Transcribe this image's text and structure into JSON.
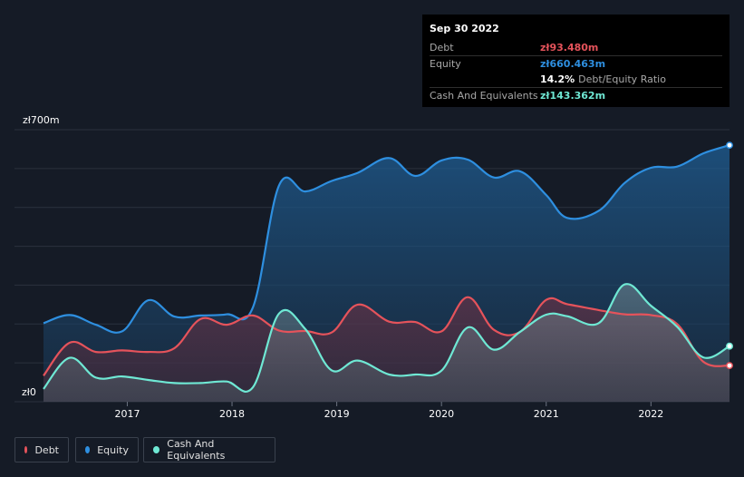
{
  "colors": {
    "background": "#151b26",
    "debt": "#e5535b",
    "equity": "#2e8fe0",
    "cash": "#6fe8d4",
    "grid": "#2b323e",
    "axis_text": "#ffffff"
  },
  "tooltip": {
    "date": "Sep 30 2022",
    "rows": [
      {
        "label": "Debt",
        "value": "zł93.480m"
      },
      {
        "label": "Equity",
        "value": "zł660.463m"
      },
      {
        "label": "",
        "value": "14.2%",
        "suffix": "Debt/Equity Ratio"
      },
      {
        "label": "Cash And Equivalents",
        "value": "zł143.362m"
      }
    ]
  },
  "legend": {
    "debt": "Debt",
    "equity": "Equity",
    "cash": "Cash And Equivalents"
  },
  "chart_data": {
    "type": "area",
    "title": "",
    "xlabel": "",
    "ylabel": "",
    "ylim": [
      0,
      700
    ],
    "y_tick_labels": [
      "zł0",
      "zł700m"
    ],
    "x_range": [
      2016.2,
      2022.75
    ],
    "x_ticks": [
      2017,
      2018,
      2019,
      2020,
      2021,
      2022
    ],
    "series": [
      {
        "name": "Equity",
        "x": [
          2016.2,
          2016.45,
          2016.7,
          2016.95,
          2017.2,
          2017.45,
          2017.7,
          2017.95,
          2018.2,
          2018.45,
          2018.7,
          2018.95,
          2019.2,
          2019.5,
          2019.75,
          2020.0,
          2020.25,
          2020.5,
          2020.75,
          2021.0,
          2021.2,
          2021.5,
          2021.75,
          2022.0,
          2022.25,
          2022.5,
          2022.75
        ],
        "values": [
          202,
          223,
          198,
          181,
          261,
          219,
          222,
          225,
          243,
          557,
          541,
          568,
          589,
          627,
          581,
          621,
          623,
          577,
          593,
          532,
          473,
          491,
          563,
          602,
          605,
          639,
          660
        ]
      },
      {
        "name": "Debt",
        "x": [
          2016.2,
          2016.45,
          2016.7,
          2016.95,
          2017.2,
          2017.45,
          2017.7,
          2017.95,
          2018.2,
          2018.45,
          2018.7,
          2018.95,
          2019.2,
          2019.5,
          2019.75,
          2020.0,
          2020.25,
          2020.5,
          2020.75,
          2021.0,
          2021.2,
          2021.5,
          2021.75,
          2022.0,
          2022.25,
          2022.5,
          2022.75
        ],
        "values": [
          67,
          152,
          128,
          132,
          128,
          138,
          213,
          198,
          222,
          183,
          182,
          178,
          250,
          206,
          205,
          181,
          269,
          185,
          180,
          262,
          251,
          236,
          225,
          223,
          200,
          103,
          93
        ]
      },
      {
        "name": "Cash And Equivalents",
        "x": [
          2016.2,
          2016.45,
          2016.7,
          2016.95,
          2017.2,
          2017.45,
          2017.7,
          2017.95,
          2018.2,
          2018.45,
          2018.7,
          2018.95,
          2019.2,
          2019.5,
          2019.75,
          2020.0,
          2020.25,
          2020.5,
          2020.75,
          2021.0,
          2021.2,
          2021.5,
          2021.75,
          2022.0,
          2022.25,
          2022.5,
          2022.75
        ],
        "values": [
          33,
          113,
          62,
          65,
          56,
          48,
          48,
          52,
          37,
          227,
          187,
          81,
          106,
          70,
          70,
          80,
          191,
          134,
          180,
          224,
          220,
          202,
          302,
          247,
          193,
          114,
          143
        ]
      }
    ]
  }
}
